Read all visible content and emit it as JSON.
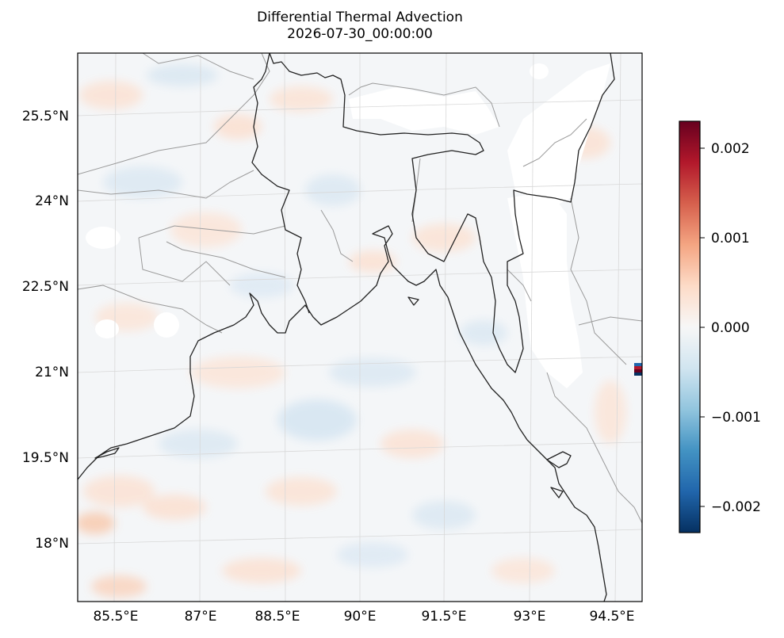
{
  "title": "Differential Thermal Advection",
  "subtitle": "2026-07-30_00:00:00",
  "lon_ticks": [
    "85.5°E",
    "87°E",
    "88.5°E",
    "90°E",
    "91.5°E",
    "93°E",
    "94.5°E"
  ],
  "lat_ticks": [
    "25.5°N",
    "24°N",
    "22.5°N",
    "21°N",
    "19.5°N",
    "18°N"
  ],
  "colorbar": {
    "ticks": [
      "0.002",
      "0.001",
      "0.000",
      "−0.001",
      "−0.002"
    ],
    "range": [
      -0.0023,
      0.0023
    ],
    "colormap": "RdBu_r"
  },
  "colors": {
    "coastline": "#222222",
    "admin_borders": "#9a9a9a",
    "gridlines": "#d8d8d8",
    "missing_data": "#ffffff"
  }
}
